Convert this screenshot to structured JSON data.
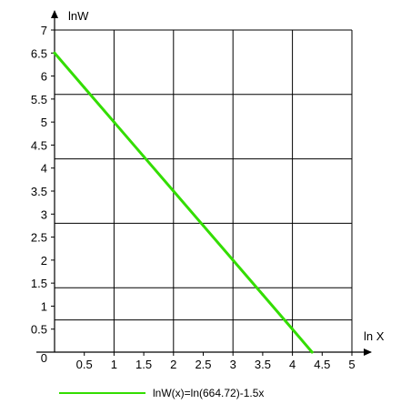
{
  "chart_data": {
    "type": "line",
    "xlabel": "ln X",
    "ylabel": "lnW",
    "xlim": [
      0,
      5
    ],
    "ylim": [
      0,
      7
    ],
    "x_ticks": [
      "0",
      "0.5",
      "1",
      "1.5",
      "2",
      "2.5",
      "3",
      "3.5",
      "4",
      "4.5",
      "5"
    ],
    "y_ticks": [
      "0",
      "0.5",
      "1",
      "1.5",
      "2",
      "2.5",
      "3",
      "3.5",
      "4",
      "4.5",
      "5",
      "5.5",
      "6",
      "6.5",
      "7"
    ],
    "grid": true,
    "legend_position": "bottom",
    "series": [
      {
        "name": "lnW(x)=ln(664.72)-1.5x",
        "color": "#33dd00",
        "x": [
          0,
          0.5,
          1,
          1.5,
          2,
          2.5,
          3,
          3.5,
          4,
          4.33
        ],
        "y": [
          6.5,
          5.75,
          5.0,
          4.25,
          3.5,
          2.75,
          2.0,
          1.25,
          0.5,
          0.0
        ]
      }
    ]
  }
}
